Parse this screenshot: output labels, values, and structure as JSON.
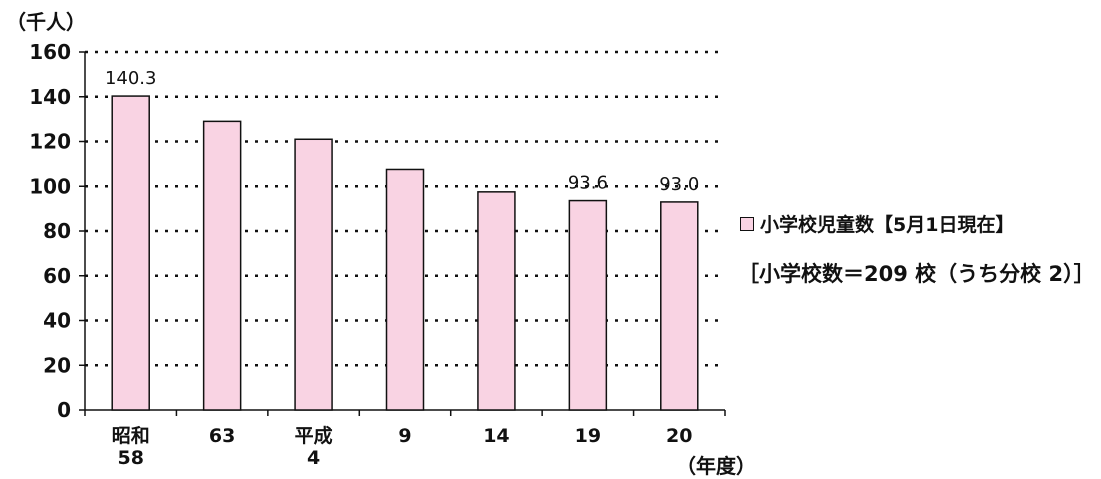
{
  "chart_data": {
    "type": "bar",
    "categories": [
      "昭和\n58",
      "63",
      "平成\n4",
      "9",
      "14",
      "19",
      "20"
    ],
    "values": [
      140.3,
      129.0,
      121.0,
      107.5,
      97.5,
      93.6,
      93.0
    ],
    "data_labels": [
      "140.3",
      "",
      "",
      "",
      "",
      "93.6",
      "93.0"
    ],
    "ylabel": "（千人）",
    "xlabel": "（年度）",
    "ylim": [
      0,
      160
    ],
    "yticks": [
      "0",
      "20",
      "40",
      "60",
      "80",
      "100",
      "120",
      "140",
      "160"
    ],
    "grid": true,
    "legend": {
      "label": "小学校児童数【5月1日現在】",
      "placement": "right"
    },
    "note": "［小学校数＝209 校（うち分校 2）］",
    "colors": {
      "bar_fill": "#f9d3e3",
      "bar_stroke": "#111111",
      "grid": "#111111"
    }
  }
}
